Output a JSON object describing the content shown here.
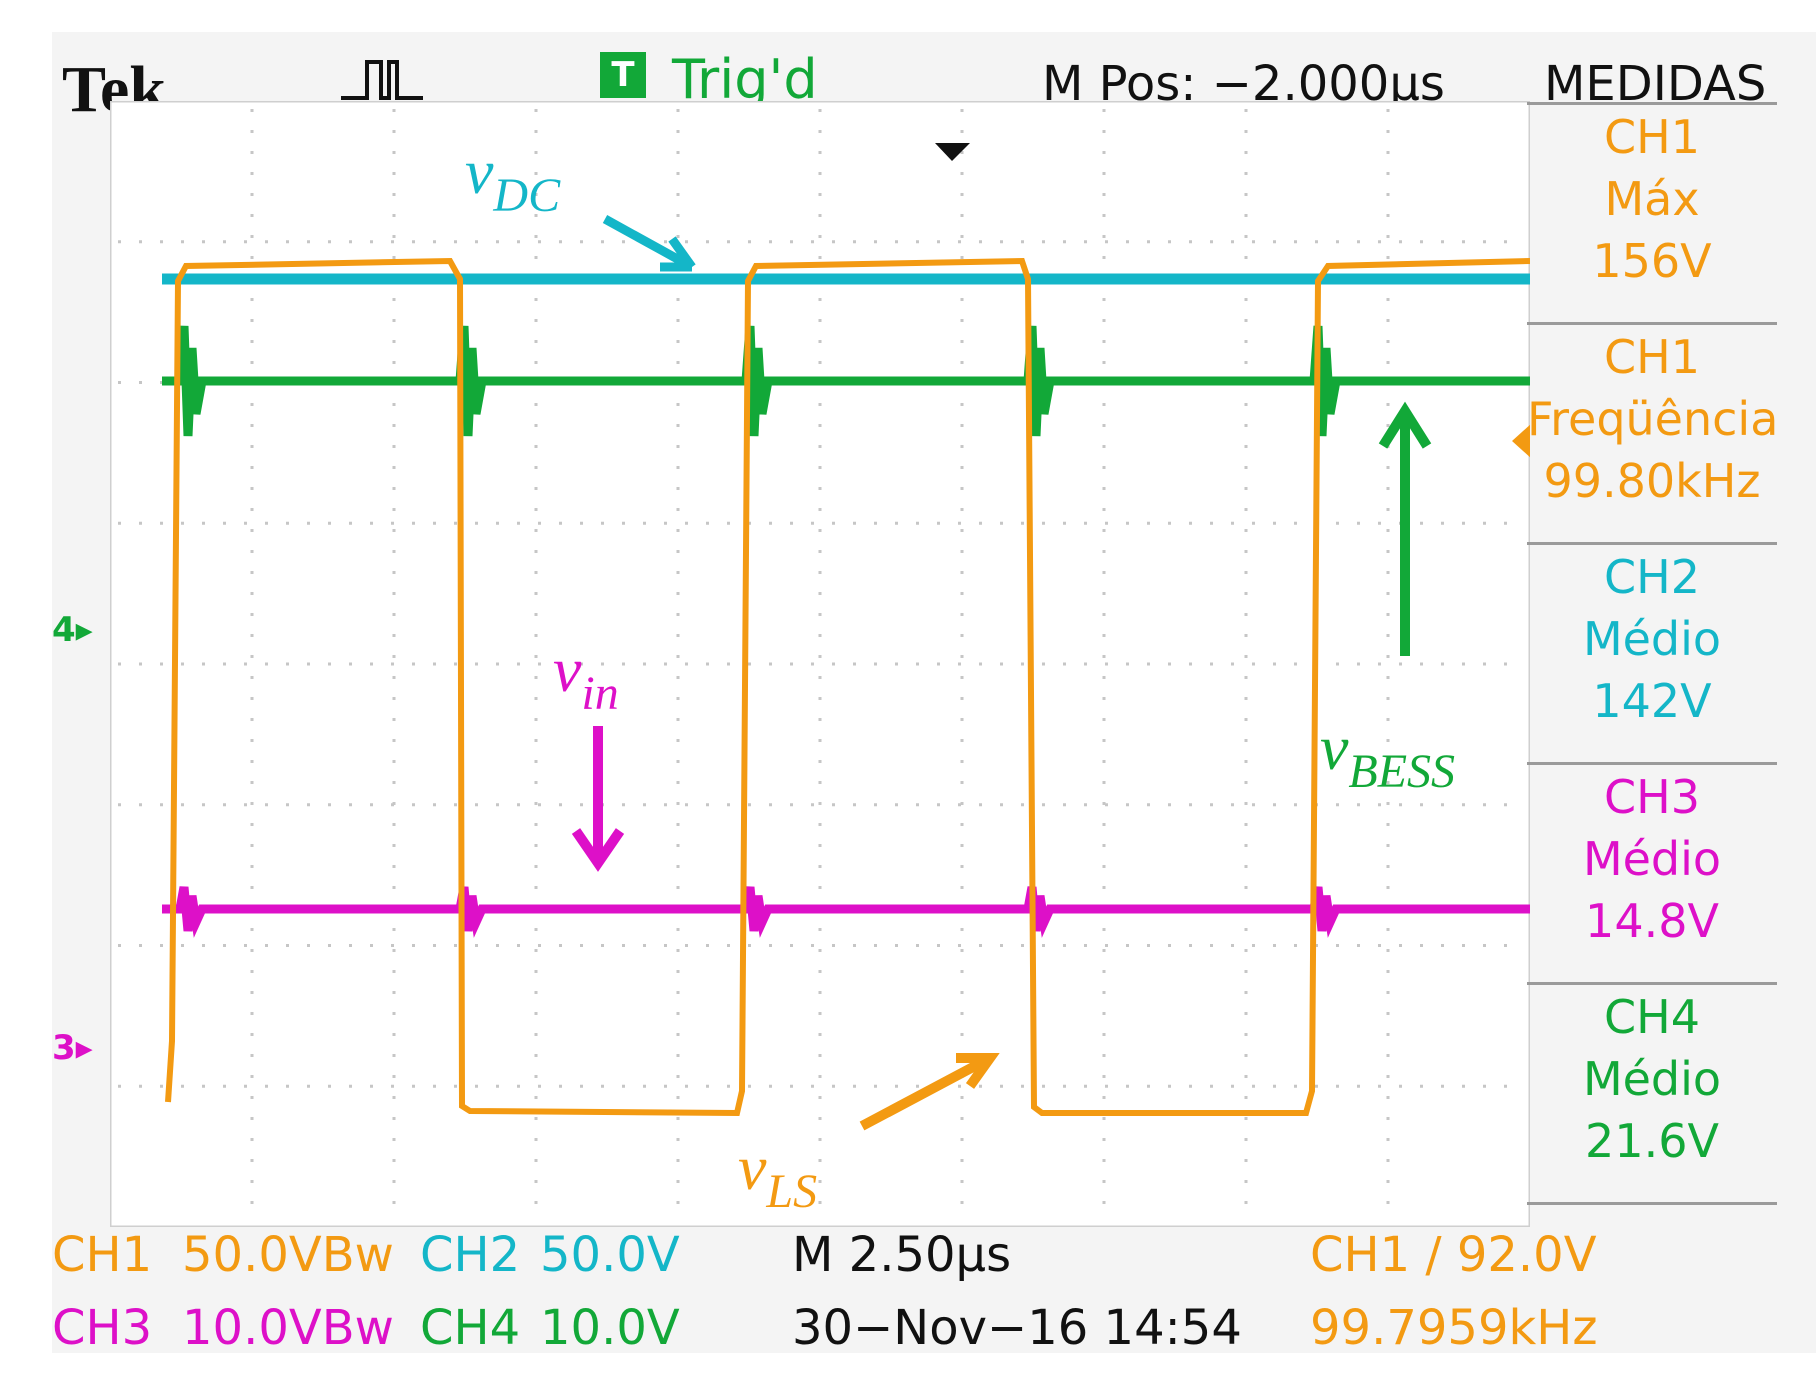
{
  "header": {
    "brand": "Tek",
    "trigger_badge": "T",
    "trigger_status": "Trig'd",
    "menu_pos": "M Pos: −2.000μs",
    "panel_title": "MEDIDAS"
  },
  "measurements": [
    {
      "channel": "CH1",
      "type": "Máx",
      "value": "156V",
      "color": "#f39a12"
    },
    {
      "channel": "CH1",
      "type": "Freqüência",
      "value": "99.80kHz",
      "color": "#f39a12"
    },
    {
      "channel": "CH2",
      "type": "Médio",
      "value": "142V",
      "color": "#14b6c8"
    },
    {
      "channel": "CH3",
      "type": "Médio",
      "value": "14.8V",
      "color": "#dd10c8"
    },
    {
      "channel": "CH4",
      "type": "Médio",
      "value": "21.6V",
      "color": "#12a838"
    }
  ],
  "traces": {
    "vDC": {
      "label": "v",
      "sub": "DC",
      "color": "#14b6c8"
    },
    "vBESS": {
      "label": "v",
      "sub": "BESS",
      "color": "#12a838"
    },
    "vin": {
      "label": "v",
      "sub": "in",
      "color": "#dd10c8"
    },
    "vLS": {
      "label": "v",
      "sub": "LS",
      "color": "#f39a12"
    }
  },
  "markers": {
    "ch2_ch4": "4▸",
    "ch3": "3▸"
  },
  "footer": {
    "ch1_name": "CH1",
    "ch1_scale": "50.0VBw",
    "ch2_name": "CH2",
    "ch2_scale": "50.0V",
    "ch3_name": "CH3",
    "ch3_scale": "10.0VBw",
    "ch4_name": "CH4",
    "ch4_scale": "10.0V",
    "timebase": "M 2.50μs",
    "datetime": "30−Nov−16 14:54",
    "trigger": "CH1 ∕ 92.0V",
    "frequency": "99.7959kHz"
  },
  "colors": {
    "ch1": "#f39a12",
    "ch2": "#14b6c8",
    "ch3": "#dd10c8",
    "ch4": "#12a838",
    "background": "#f4f4f4"
  }
}
